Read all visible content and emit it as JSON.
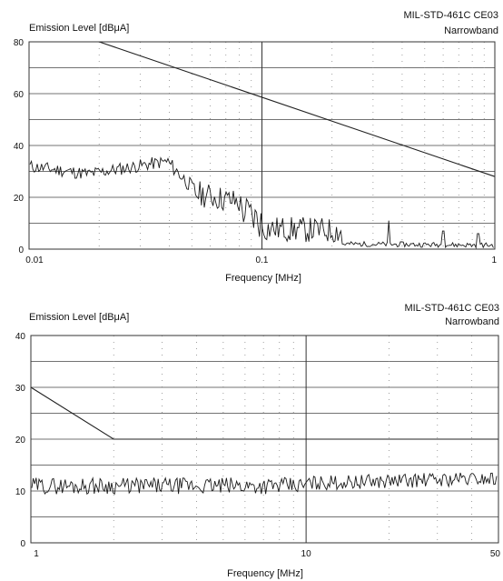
{
  "chart_data": [
    {
      "type": "line",
      "standard": "MIL-STD-461C CE03",
      "mode": "Narrowband",
      "ylabel": "Emission Level [dBμA]",
      "xlabel": "Frequency [MHz]",
      "x_scale": "log",
      "xlim": [
        0.01,
        1
      ],
      "ylim": [
        0,
        80
      ],
      "x_ticks": [
        0.01,
        0.1,
        1
      ],
      "x_tick_labels": [
        "0.01",
        "0.1",
        "1"
      ],
      "y_ticks": [
        0,
        20,
        40,
        60,
        80
      ],
      "y_tick_labels": [
        "0",
        "20",
        "40",
        "60",
        "80"
      ],
      "grid": true,
      "limit_line": {
        "x": [
          0.02,
          1.0
        ],
        "y": [
          80,
          28
        ]
      },
      "emission_series": {
        "noise_seed": 11,
        "segments": [
          {
            "x_start": 0.01,
            "x_end": 0.018,
            "level_start": 32,
            "level_end": 29,
            "ripple": 2.5
          },
          {
            "x_start": 0.018,
            "x_end": 0.04,
            "level_start": 29,
            "level_end": 34,
            "ripple": 2.5
          },
          {
            "x_start": 0.04,
            "x_end": 0.05,
            "level_start": 33,
            "level_end": 24,
            "ripple": 3
          },
          {
            "x_start": 0.05,
            "x_end": 0.08,
            "level_start": 22,
            "level_end": 18,
            "ripple": 5
          },
          {
            "x_start": 0.08,
            "x_end": 0.1,
            "level_start": 16,
            "level_end": 10,
            "ripple": 7
          },
          {
            "x_start": 0.1,
            "x_end": 0.22,
            "level_start": 8,
            "level_end": 7,
            "ripple": 5
          },
          {
            "x_start": 0.22,
            "x_end": 1.0,
            "level_start": 2,
            "level_end": 1.5,
            "ripple": 1
          }
        ],
        "spikes": [
          {
            "x": 0.35,
            "y": 11
          },
          {
            "x": 0.6,
            "y": 7
          },
          {
            "x": 0.85,
            "y": 6
          }
        ]
      }
    },
    {
      "type": "line",
      "standard": "MIL-STD-461C CE03",
      "mode": "Narrowband",
      "ylabel": "Emission Level [dBμA]",
      "xlabel": "Frequency [MHz]",
      "x_scale": "log",
      "xlim": [
        1,
        50
      ],
      "ylim": [
        0,
        40
      ],
      "x_ticks": [
        1,
        10,
        50
      ],
      "x_tick_labels": [
        "1",
        "10",
        "50"
      ],
      "y_ticks": [
        0,
        10,
        20,
        30,
        40
      ],
      "y_tick_labels": [
        "0",
        "10",
        "20",
        "30",
        "40"
      ],
      "grid": true,
      "limit_line": {
        "x": [
          1,
          2,
          50
        ],
        "y": [
          30,
          20,
          20
        ]
      },
      "emission_series": {
        "noise_seed": 29,
        "segments": [
          {
            "x_start": 1,
            "x_end": 10,
            "level_start": 11,
            "level_end": 11,
            "ripple": 1.6
          },
          {
            "x_start": 10,
            "x_end": 50,
            "level_start": 11.5,
            "level_end": 12.5,
            "ripple": 1.4
          }
        ],
        "spikes": []
      }
    }
  ]
}
